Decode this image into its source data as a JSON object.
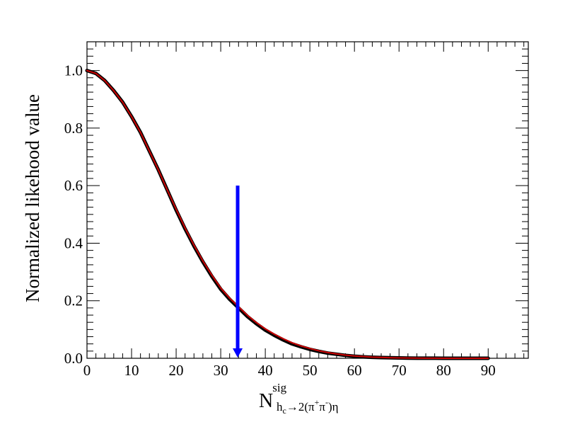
{
  "chart_data": {
    "type": "line",
    "ylabel": "Normalized likehood value",
    "xlabel": {
      "main": "N",
      "superscript": "sig",
      "subscript_h": "h",
      "subscript_c": "c",
      "subscript_arrow": "→2(π",
      "subscript_plus": "+",
      "subscript_pi": "π",
      "subscript_minus": "-",
      "subscript_end": ")η"
    },
    "xlim": [
      0,
      99
    ],
    "ylim": [
      0,
      1.1
    ],
    "x_ticks": [
      0,
      10,
      20,
      30,
      40,
      50,
      60,
      70,
      80,
      90
    ],
    "x_tick_labels": [
      "0",
      "10",
      "20",
      "30",
      "40",
      "50",
      "60",
      "70",
      "80",
      "90"
    ],
    "y_ticks": [
      0,
      0.2,
      0.4,
      0.6,
      0.8,
      1.0
    ],
    "y_tick_labels": [
      "0.0",
      "0.2",
      "0.4",
      "0.6",
      "0.8",
      "1.0"
    ],
    "grid": false,
    "series": [
      {
        "color": "#000000",
        "x": [
          0,
          2,
          4,
          6,
          8,
          10,
          12,
          14,
          16,
          18,
          20,
          22,
          24,
          26,
          28,
          30,
          32,
          34,
          36,
          38,
          40,
          42,
          44,
          46,
          48,
          50,
          52,
          54,
          56,
          58,
          60,
          62,
          64,
          66,
          68,
          70,
          72,
          74,
          76,
          78,
          80,
          82,
          84,
          86,
          88,
          90
        ],
        "y": [
          1.0,
          0.99,
          0.965,
          0.93,
          0.89,
          0.84,
          0.785,
          0.72,
          0.655,
          0.585,
          0.515,
          0.45,
          0.39,
          0.335,
          0.285,
          0.24,
          0.205,
          0.175,
          0.145,
          0.12,
          0.098,
          0.08,
          0.064,
          0.05,
          0.04,
          0.031,
          0.024,
          0.018,
          0.014,
          0.01,
          0.007,
          0.005,
          0.0035,
          0.0025,
          0.0017,
          0.0011,
          0.0007,
          0.0004,
          0.0003,
          0.0002,
          0.0001,
          0.0001,
          0.0,
          0.0,
          0.0,
          0.0
        ]
      },
      {
        "color": "#cc0000",
        "x": [
          0,
          2,
          4,
          6,
          8,
          10,
          12,
          14,
          16,
          18,
          20,
          22,
          24,
          26,
          28,
          30,
          32,
          34,
          36,
          38,
          40,
          42,
          44,
          46,
          48,
          50,
          52,
          54,
          56,
          58,
          60,
          62,
          64,
          66,
          68,
          70,
          72,
          74,
          76,
          78,
          80,
          82,
          84,
          86,
          88,
          90
        ],
        "y": [
          1.0,
          0.99,
          0.965,
          0.93,
          0.89,
          0.84,
          0.785,
          0.72,
          0.655,
          0.585,
          0.518,
          0.453,
          0.393,
          0.338,
          0.289,
          0.244,
          0.209,
          0.179,
          0.149,
          0.124,
          0.102,
          0.084,
          0.068,
          0.054,
          0.043,
          0.034,
          0.026,
          0.02,
          0.015,
          0.011,
          0.008,
          0.006,
          0.004,
          0.003,
          0.002,
          0.0013,
          0.0008,
          0.0005,
          0.0003,
          0.0002,
          0.0001,
          0.0001,
          0.0,
          0.0,
          0.0,
          0.0
        ]
      }
    ],
    "annotation": {
      "type": "arrow",
      "x": 33.8,
      "y_start": 0.6,
      "y_end": 0.0,
      "color": "#0000ff"
    }
  }
}
